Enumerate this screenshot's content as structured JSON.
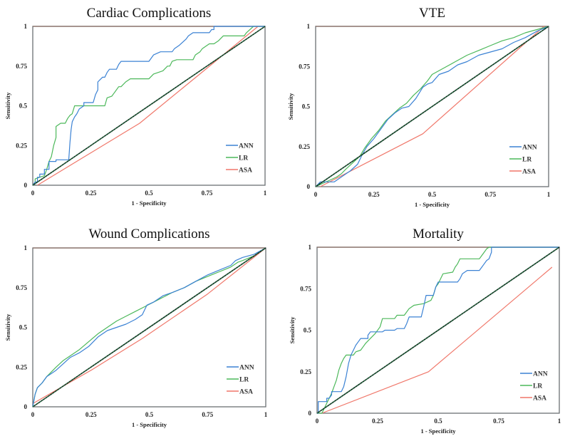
{
  "chart_data": [
    {
      "type": "line",
      "title": "Cardiac Complications",
      "xlabel": "1 - Specificity",
      "ylabel": "Sensitivity",
      "xlim": [
        0,
        1
      ],
      "ylim": [
        0,
        1
      ],
      "xticks": [
        "0",
        "0.25",
        "0.5",
        "0.75",
        "1"
      ],
      "yticks": [
        "0",
        "0.25",
        "0.5",
        "0.75",
        "1"
      ],
      "legend_position": "bottom-right",
      "reference_line": {
        "name": "chance",
        "x": [
          0,
          1
        ],
        "y": [
          0,
          1
        ],
        "color": "#1f4f2f"
      },
      "series": [
        {
          "name": "ANN",
          "color": "#3b82d4",
          "x": [
            0,
            0.01,
            0.02,
            0.02,
            0.03,
            0.03,
            0.05,
            0.05,
            0.07,
            0.07,
            0.1,
            0.1,
            0.155,
            0.16,
            0.165,
            0.17,
            0.18,
            0.19,
            0.2,
            0.22,
            0.22,
            0.26,
            0.27,
            0.28,
            0.28,
            0.3,
            0.31,
            0.32,
            0.33,
            0.36,
            0.37,
            0.38,
            0.5,
            0.52,
            0.55,
            0.6,
            0.61,
            0.63,
            0.66,
            0.67,
            0.69,
            0.76,
            0.77,
            0.78,
            0.78,
            1.0
          ],
          "y": [
            0,
            0.02,
            0.02,
            0.05,
            0.05,
            0.07,
            0.07,
            0.1,
            0.1,
            0.15,
            0.15,
            0.16,
            0.16,
            0.27,
            0.35,
            0.4,
            0.43,
            0.45,
            0.48,
            0.5,
            0.52,
            0.52,
            0.57,
            0.6,
            0.65,
            0.68,
            0.68,
            0.71,
            0.73,
            0.73,
            0.76,
            0.78,
            0.78,
            0.82,
            0.84,
            0.84,
            0.86,
            0.88,
            0.92,
            0.94,
            0.96,
            0.96,
            0.98,
            0.98,
            1.0,
            1.0
          ]
        },
        {
          "name": "LR",
          "color": "#4cb85a",
          "x": [
            0,
            0.01,
            0.01,
            0.05,
            0.06,
            0.07,
            0.08,
            0.09,
            0.1,
            0.1,
            0.12,
            0.14,
            0.15,
            0.16,
            0.17,
            0.18,
            0.31,
            0.32,
            0.34,
            0.35,
            0.37,
            0.38,
            0.4,
            0.42,
            0.5,
            0.52,
            0.56,
            0.58,
            0.59,
            0.6,
            0.62,
            0.69,
            0.7,
            0.72,
            0.73,
            0.75,
            0.76,
            0.78,
            0.8,
            0.82,
            0.91,
            0.92,
            0.95,
            1.0
          ],
          "y": [
            0,
            0.02,
            0.04,
            0.06,
            0.1,
            0.15,
            0.18,
            0.25,
            0.3,
            0.37,
            0.39,
            0.39,
            0.42,
            0.44,
            0.45,
            0.5,
            0.5,
            0.55,
            0.56,
            0.58,
            0.62,
            0.62,
            0.65,
            0.67,
            0.67,
            0.7,
            0.72,
            0.75,
            0.75,
            0.78,
            0.79,
            0.79,
            0.82,
            0.84,
            0.86,
            0.88,
            0.89,
            0.89,
            0.91,
            0.94,
            0.94,
            0.96,
            1.0,
            1.0
          ]
        },
        {
          "name": "ASA",
          "color": "#f0776a",
          "x": [
            0.02,
            0.46,
            0.97
          ],
          "y": [
            0,
            0.39,
            1.0
          ]
        }
      ]
    },
    {
      "type": "line",
      "title": "VTE",
      "xlabel": "1 - Specificity",
      "ylabel": "Sensitivity",
      "xlim": [
        0,
        1
      ],
      "ylim": [
        0,
        1
      ],
      "xticks": [
        "0",
        "0.25",
        "0.5",
        "0.75",
        "1"
      ],
      "yticks": [
        "0",
        "0.25",
        "0.5",
        "0.75",
        "1"
      ],
      "legend_position": "bottom-right",
      "reference_line": {
        "name": "chance",
        "x": [
          0,
          1
        ],
        "y": [
          0,
          1
        ],
        "color": "#1f4f2f"
      },
      "series": [
        {
          "name": "ANN",
          "color": "#3b82d4",
          "x": [
            0,
            0.02,
            0.05,
            0.08,
            0.1,
            0.12,
            0.15,
            0.18,
            0.2,
            0.22,
            0.25,
            0.28,
            0.31,
            0.34,
            0.37,
            0.4,
            0.43,
            0.46,
            0.48,
            0.5,
            0.53,
            0.57,
            0.61,
            0.65,
            0.7,
            0.75,
            0.8,
            0.85,
            0.9,
            0.95,
            1.0
          ],
          "y": [
            0,
            0.03,
            0.03,
            0.03,
            0.05,
            0.07,
            0.1,
            0.14,
            0.2,
            0.25,
            0.3,
            0.36,
            0.42,
            0.46,
            0.49,
            0.5,
            0.55,
            0.62,
            0.64,
            0.65,
            0.7,
            0.72,
            0.76,
            0.78,
            0.82,
            0.84,
            0.86,
            0.9,
            0.93,
            0.97,
            1.0
          ]
        },
        {
          "name": "LR",
          "color": "#4cb85a",
          "x": [
            0,
            0.03,
            0.06,
            0.09,
            0.11,
            0.13,
            0.16,
            0.19,
            0.21,
            0.24,
            0.27,
            0.3,
            0.33,
            0.36,
            0.39,
            0.42,
            0.45,
            0.48,
            0.5,
            0.55,
            0.6,
            0.65,
            0.7,
            0.75,
            0.8,
            0.85,
            0.9,
            0.95,
            1.0
          ],
          "y": [
            0,
            0.02,
            0.04,
            0.06,
            0.08,
            0.11,
            0.15,
            0.19,
            0.24,
            0.3,
            0.35,
            0.41,
            0.45,
            0.49,
            0.52,
            0.57,
            0.61,
            0.66,
            0.7,
            0.74,
            0.78,
            0.82,
            0.85,
            0.88,
            0.91,
            0.93,
            0.96,
            0.98,
            1.0
          ]
        },
        {
          "name": "ASA",
          "color": "#f0776a",
          "x": [
            0.02,
            0.46,
            0.98
          ],
          "y": [
            0,
            0.33,
            1.0
          ]
        }
      ]
    },
    {
      "type": "line",
      "title": "Wound Complications",
      "xlabel": "1 - Specificity",
      "ylabel": "Sensitivity",
      "xlim": [
        0,
        1
      ],
      "ylim": [
        0,
        1
      ],
      "xticks": [
        "0",
        "0.25",
        "0.5",
        "0.75",
        "1"
      ],
      "yticks": [
        "0",
        "0.25",
        "0.5",
        "0.75",
        "1"
      ],
      "legend_position": "bottom-right",
      "reference_line": {
        "name": "chance",
        "x": [
          0,
          1
        ],
        "y": [
          0,
          1
        ],
        "color": "#1f4f2f"
      },
      "series": [
        {
          "name": "ANN",
          "color": "#3b82d4",
          "x": [
            0,
            0.01,
            0.02,
            0.04,
            0.06,
            0.08,
            0.1,
            0.13,
            0.16,
            0.2,
            0.24,
            0.28,
            0.32,
            0.36,
            0.4,
            0.44,
            0.47,
            0.49,
            0.52,
            0.56,
            0.6,
            0.65,
            0.7,
            0.75,
            0.8,
            0.85,
            0.87,
            0.9,
            0.95,
            1.0
          ],
          "y": [
            0,
            0.08,
            0.12,
            0.15,
            0.19,
            0.21,
            0.23,
            0.27,
            0.31,
            0.34,
            0.38,
            0.44,
            0.48,
            0.5,
            0.52,
            0.55,
            0.58,
            0.64,
            0.66,
            0.7,
            0.72,
            0.75,
            0.79,
            0.83,
            0.86,
            0.89,
            0.92,
            0.94,
            0.96,
            1.0
          ]
        },
        {
          "name": "LR",
          "color": "#4cb85a",
          "x": [
            0,
            0.01,
            0.02,
            0.04,
            0.06,
            0.08,
            0.1,
            0.13,
            0.16,
            0.2,
            0.24,
            0.28,
            0.32,
            0.36,
            0.4,
            0.44,
            0.48,
            0.52,
            0.56,
            0.6,
            0.65,
            0.7,
            0.75,
            0.8,
            0.85,
            0.88,
            0.9,
            0.95,
            1.0
          ],
          "y": [
            0,
            0.08,
            0.12,
            0.15,
            0.19,
            0.22,
            0.25,
            0.29,
            0.32,
            0.36,
            0.41,
            0.46,
            0.5,
            0.54,
            0.57,
            0.6,
            0.63,
            0.66,
            0.69,
            0.72,
            0.75,
            0.79,
            0.82,
            0.85,
            0.88,
            0.91,
            0.92,
            0.95,
            1.0
          ]
        },
        {
          "name": "ASA",
          "color": "#f0776a",
          "x": [
            0,
            0.25,
            0.47,
            0.75,
            1.0
          ],
          "y": [
            0.02,
            0.23,
            0.43,
            0.71,
            1.0
          ]
        }
      ]
    },
    {
      "type": "line",
      "title": "Mortality",
      "xlabel": "1 - Specificity",
      "ylabel": "Sensitivity",
      "xlim": [
        0,
        1
      ],
      "ylim": [
        0,
        1
      ],
      "xticks": [
        "0",
        "0.25",
        "0.5",
        "0.75",
        "1"
      ],
      "yticks": [
        "0",
        "0.25",
        "0.5",
        "0.75",
        "1"
      ],
      "legend_position": "bottom-right",
      "reference_line": {
        "name": "chance",
        "x": [
          0,
          1
        ],
        "y": [
          0,
          1
        ],
        "color": "#1f4f2f"
      },
      "series": [
        {
          "name": "ANN",
          "color": "#3b82d4",
          "x": [
            0,
            0.005,
            0.005,
            0.04,
            0.04,
            0.05,
            0.06,
            0.06,
            0.1,
            0.11,
            0.12,
            0.13,
            0.14,
            0.15,
            0.16,
            0.17,
            0.18,
            0.21,
            0.21,
            0.22,
            0.27,
            0.28,
            0.32,
            0.33,
            0.36,
            0.37,
            0.38,
            0.43,
            0.44,
            0.45,
            0.48,
            0.49,
            0.5,
            0.58,
            0.59,
            0.6,
            0.62,
            0.67,
            0.68,
            0.69,
            0.7,
            0.71,
            0.72,
            0.72,
            1.0
          ],
          "y": [
            0,
            0,
            0.07,
            0.07,
            0.09,
            0.09,
            0.11,
            0.13,
            0.13,
            0.16,
            0.22,
            0.3,
            0.35,
            0.38,
            0.41,
            0.43,
            0.45,
            0.45,
            0.47,
            0.49,
            0.49,
            0.5,
            0.5,
            0.51,
            0.51,
            0.54,
            0.58,
            0.58,
            0.64,
            0.71,
            0.71,
            0.76,
            0.79,
            0.79,
            0.81,
            0.84,
            0.86,
            0.86,
            0.88,
            0.9,
            0.92,
            0.93,
            0.97,
            1.0,
            1.0
          ]
        },
        {
          "name": "LR",
          "color": "#4cb85a",
          "x": [
            0,
            0.02,
            0.03,
            0.04,
            0.05,
            0.06,
            0.07,
            0.08,
            0.09,
            0.1,
            0.11,
            0.12,
            0.15,
            0.16,
            0.18,
            0.19,
            0.2,
            0.22,
            0.24,
            0.26,
            0.27,
            0.32,
            0.33,
            0.36,
            0.38,
            0.4,
            0.44,
            0.47,
            0.48,
            0.49,
            0.5,
            0.52,
            0.56,
            0.57,
            0.58,
            0.59,
            0.67,
            0.68,
            0.69,
            0.7,
            0.71,
            1.0
          ],
          "y": [
            0,
            0,
            0.03,
            0.06,
            0.09,
            0.12,
            0.16,
            0.2,
            0.26,
            0.3,
            0.33,
            0.35,
            0.35,
            0.37,
            0.38,
            0.4,
            0.42,
            0.45,
            0.48,
            0.52,
            0.57,
            0.57,
            0.59,
            0.59,
            0.63,
            0.65,
            0.66,
            0.68,
            0.71,
            0.76,
            0.78,
            0.84,
            0.85,
            0.88,
            0.9,
            0.93,
            0.93,
            0.95,
            0.97,
            0.99,
            1.0,
            1.0
          ]
        },
        {
          "name": "ASA",
          "color": "#f0776a",
          "x": [
            0.02,
            0.46,
            0.97
          ],
          "y": [
            0,
            0.25,
            0.88
          ]
        }
      ]
    }
  ]
}
